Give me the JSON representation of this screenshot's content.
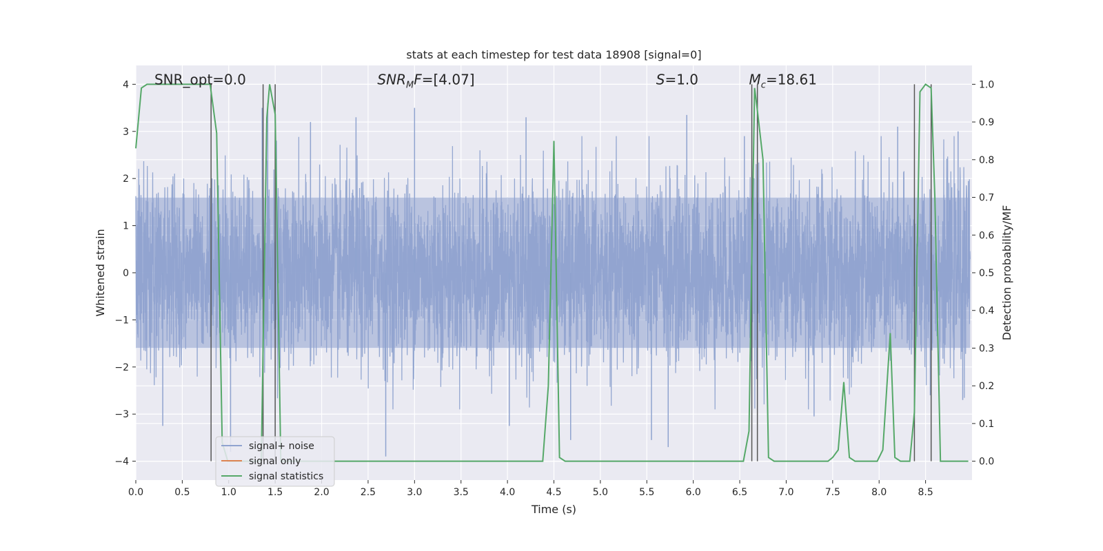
{
  "chart_data": {
    "type": "line",
    "title": "stats at each timestep for test data 18908 [signal=0]",
    "xlabel": "Time (s)",
    "ylabel": "Whitened strain",
    "ylabel_right": "Detection probability/MF",
    "xlim": [
      0.0,
      9.0
    ],
    "ylim": [
      -4.4,
      4.4
    ],
    "ylim_right": [
      -0.05,
      1.05
    ],
    "xticks": [
      0.0,
      0.5,
      1.0,
      1.5,
      2.0,
      2.5,
      3.0,
      3.5,
      4.0,
      4.5,
      5.0,
      5.5,
      6.0,
      6.5,
      7.0,
      7.5,
      8.0,
      8.5
    ],
    "xtick_labels": [
      "0.0",
      "0.5",
      "1.0",
      "1.5",
      "2.0",
      "2.5",
      "3.0",
      "3.5",
      "4.0",
      "4.5",
      "5.0",
      "5.5",
      "6.0",
      "6.5",
      "7.0",
      "7.5",
      "8.0",
      "8.5"
    ],
    "yticks": [
      -4,
      -3,
      -2,
      -1,
      0,
      1,
      2,
      3,
      4
    ],
    "ytick_labels": [
      "−4",
      "−3",
      "−2",
      "−1",
      "0",
      "1",
      "2",
      "3",
      "4"
    ],
    "yticks_right": [
      0.0,
      0.1,
      0.2,
      0.3,
      0.4,
      0.5,
      0.6,
      0.7,
      0.8,
      0.9,
      1.0
    ],
    "ytick_labels_right": [
      "0.0",
      "0.1",
      "0.2",
      "0.3",
      "0.4",
      "0.5",
      "0.6",
      "0.7",
      "0.8",
      "0.9",
      "1.0"
    ],
    "grid": true,
    "legend_position": "lower-left",
    "annotations": [
      {
        "text": "SNR_opt=0.0",
        "x": 0.2,
        "y": 4.1
      },
      {
        "text": "SNR_MF=[4.07]",
        "base": "SNR",
        "sub": "M",
        "suffix": "F=[4.07]",
        "italic": true,
        "x": 2.6,
        "y": 4.1
      },
      {
        "text": "S=1.0",
        "base": "S",
        "suffix": "=1.0",
        "italic": true,
        "x": 5.6,
        "y": 4.1
      },
      {
        "text": "M_c=18.61",
        "base": "M",
        "sub": "c",
        "suffix": "=18.61",
        "italic": true,
        "x": 6.6,
        "y": 4.1
      }
    ],
    "vertical_lines": [
      0.81,
      1.37,
      1.5,
      6.63,
      6.69,
      8.38,
      8.56
    ],
    "series": [
      {
        "name": "signal+ noise",
        "color": "#8fa3cf",
        "axis": "left",
        "description_samples": "dense noise between about -3.9 and 4.0",
        "envelope": {
          "core_hi": 1.6,
          "core_lo": -1.6,
          "spikes": [
            {
              "x": 0.82,
              "y": 2.0
            },
            {
              "x": 1.36,
              "y": 3.5
            },
            {
              "x": 1.42,
              "y": 3.6
            },
            {
              "x": 1.88,
              "y": 3.2
            },
            {
              "x": 2.37,
              "y": 3.3
            },
            {
              "x": 3.0,
              "y": 3.5
            },
            {
              "x": 4.2,
              "y": 3.3
            },
            {
              "x": 5.93,
              "y": 3.35
            },
            {
              "x": 6.55,
              "y": 2.9
            },
            {
              "x": 8.2,
              "y": 3.1
            },
            {
              "x": 8.85,
              "y": 3.0
            },
            {
              "x": 2.69,
              "y": -3.9
            },
            {
              "x": 1.02,
              "y": -3.8
            },
            {
              "x": 0.29,
              "y": -3.25
            },
            {
              "x": 4.68,
              "y": -3.55
            },
            {
              "x": 5.55,
              "y": -3.55
            },
            {
              "x": 5.73,
              "y": -3.7
            },
            {
              "x": 7.3,
              "y": -3.05
            },
            {
              "x": 4.02,
              "y": -3.25
            },
            {
              "x": 8.9,
              "y": -2.7
            }
          ]
        }
      },
      {
        "name": "signal only",
        "color": "#dd8452",
        "axis": "left",
        "x": [],
        "y": []
      },
      {
        "name": "signal statistics",
        "color": "#55a868",
        "axis": "right",
        "x": [
          0.0,
          0.06,
          0.12,
          0.18,
          0.24,
          0.3,
          0.36,
          0.42,
          0.48,
          0.54,
          0.6,
          0.66,
          0.72,
          0.78,
          0.8,
          0.87,
          0.93,
          0.99,
          1.05,
          1.11,
          1.17,
          1.23,
          1.29,
          1.35,
          1.41,
          1.44,
          1.5,
          1.56,
          1.62,
          1.68,
          4.32,
          4.38,
          4.44,
          4.5,
          4.56,
          4.62,
          4.68,
          6.54,
          6.6,
          6.66,
          6.69,
          6.75,
          6.81,
          6.87,
          7.45,
          7.5,
          7.56,
          7.62,
          7.68,
          7.74,
          7.8,
          7.98,
          8.04,
          8.12,
          8.17,
          8.23,
          8.29,
          8.33,
          8.38,
          8.44,
          8.5,
          8.56,
          8.6,
          8.66,
          8.72,
          8.96
        ],
        "y": [
          0.83,
          0.99,
          1.0,
          1.0,
          1.0,
          1.0,
          1.0,
          1.0,
          1.0,
          1.0,
          1.0,
          1.0,
          1.0,
          1.0,
          1.0,
          0.87,
          0.05,
          0.0,
          0.0,
          0.0,
          0.0,
          0.0,
          0.0,
          0.0,
          0.91,
          1.0,
          0.92,
          0.0,
          0.0,
          0.0,
          0.0,
          0.0,
          0.2,
          0.85,
          0.01,
          0.0,
          0.0,
          0.0,
          0.08,
          0.99,
          0.93,
          0.8,
          0.01,
          0.0,
          0.0,
          0.01,
          0.03,
          0.21,
          0.01,
          0.0,
          0.0,
          0.0,
          0.03,
          0.34,
          0.01,
          0.0,
          0.0,
          0.0,
          0.13,
          0.98,
          1.0,
          0.99,
          0.7,
          0.0,
          0.0,
          0.0
        ]
      }
    ]
  }
}
